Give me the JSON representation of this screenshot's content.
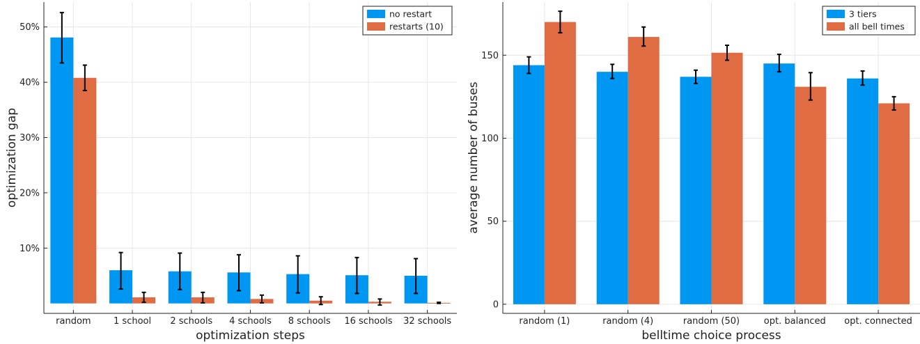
{
  "chart_data": [
    {
      "type": "bar",
      "xlabel": "optimization steps",
      "ylabel": "optimization gap",
      "categories": [
        "random",
        "1 school",
        "2 schools",
        "4 schools",
        "8 schools",
        "16 schools",
        "32 schools"
      ],
      "ylim": [
        -1.8,
        54.5
      ],
      "yticks": [
        10,
        20,
        30,
        40,
        50
      ],
      "ytick_labels": [
        "10%",
        "20%",
        "30%",
        "40%",
        "50%"
      ],
      "grid": true,
      "legend_position": "top-right",
      "series": [
        {
          "name": "no restart",
          "color": "#0097f2",
          "values": [
            48.1,
            6.0,
            5.8,
            5.6,
            5.3,
            5.1,
            5.0
          ],
          "err_low": [
            43.5,
            2.6,
            2.5,
            2.3,
            1.9,
            1.8,
            1.8
          ],
          "err_high": [
            52.6,
            9.2,
            9.1,
            8.8,
            8.6,
            8.3,
            8.1
          ]
        },
        {
          "name": "restarts (10)",
          "color": "#e06c44",
          "values": [
            40.8,
            1.1,
            1.1,
            0.8,
            0.5,
            0.3,
            0.1
          ],
          "err_low": [
            38.5,
            0.2,
            0.1,
            0.1,
            -0.2,
            -0.3,
            0.0
          ],
          "err_high": [
            43.1,
            2.0,
            2.0,
            1.5,
            1.2,
            0.8,
            0.2
          ]
        }
      ]
    },
    {
      "type": "bar",
      "xlabel": "belltime choice process",
      "ylabel": "average number of buses",
      "categories": [
        "random (1)",
        "random (4)",
        "random (50)",
        "opt. balanced",
        "opt. connected"
      ],
      "ylim": [
        -5.5,
        182
      ],
      "yticks": [
        0,
        50,
        100,
        150
      ],
      "ytick_labels": [
        "0",
        "50",
        "100",
        "150"
      ],
      "grid": true,
      "legend_position": "top-right",
      "series": [
        {
          "name": "3 tiers",
          "color": "#0097f2",
          "values": [
            144,
            140,
            137,
            145,
            136
          ],
          "err_low": [
            139,
            136,
            133,
            140,
            132
          ],
          "err_high": [
            149,
            144.5,
            141,
            150.5,
            140.5
          ]
        },
        {
          "name": "all bell times",
          "color": "#e06c44",
          "values": [
            170,
            161,
            151.5,
            131,
            121
          ],
          "err_low": [
            163.5,
            155.5,
            147,
            123,
            117
          ],
          "err_high": [
            176.5,
            167,
            156,
            139.5,
            125
          ]
        }
      ]
    }
  ]
}
